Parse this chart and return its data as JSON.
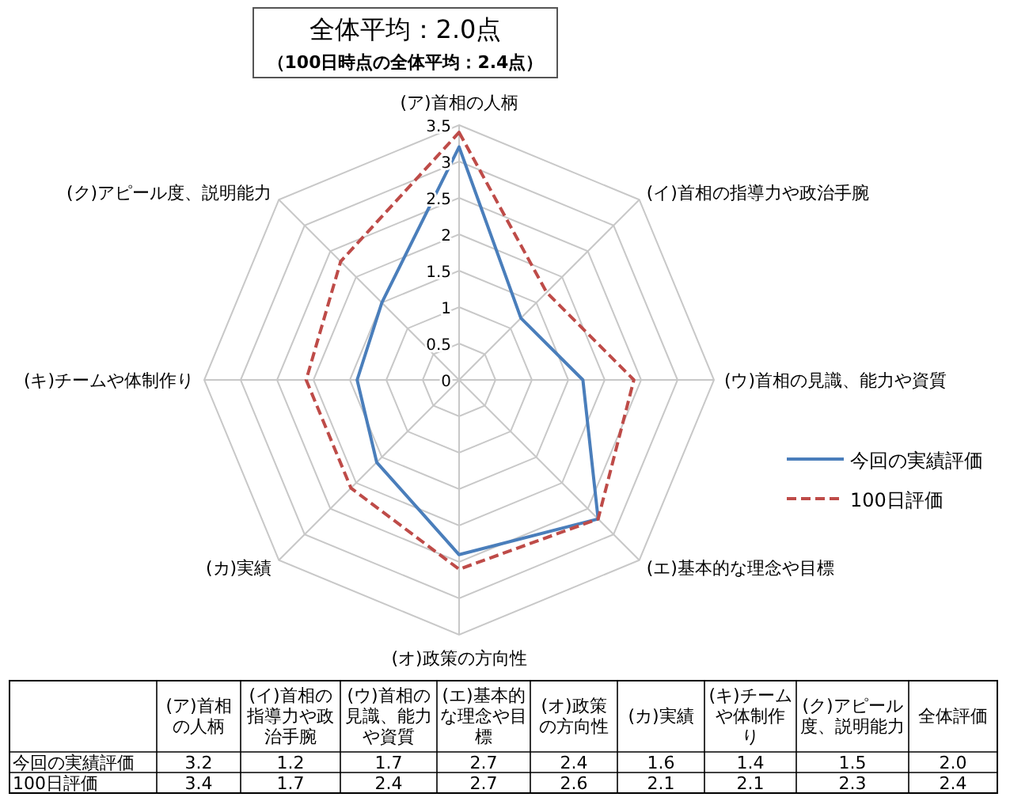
{
  "chart_data": [
    {
      "type": "radar",
      "title": "全体平均：2.0点",
      "subtitle": "（100日時点の全体平均：2.4点）",
      "categories": [
        "(ア)首相の人柄",
        "(イ)首相の指導力や政治手腕",
        "(ウ)首相の見識、能力や資質",
        "(エ)基本的な理念や目標",
        "(オ)政策の方向性",
        "(カ)実績",
        "(キ)チームや体制作り",
        "(ク)アピール度、説明能力"
      ],
      "series": [
        {
          "name": "今回の実績評価",
          "color": "#4a7ebb",
          "line_style": "solid",
          "values": [
            3.2,
            1.2,
            1.7,
            2.7,
            2.4,
            1.6,
            1.4,
            1.5
          ]
        },
        {
          "name": "100日評価",
          "color": "#be4b48",
          "line_style": "dashed",
          "values": [
            3.4,
            1.7,
            2.4,
            2.7,
            2.6,
            2.1,
            2.1,
            2.3
          ]
        }
      ],
      "ylim": [
        0,
        3.5
      ],
      "yticks": [
        0,
        0.5,
        1,
        1.5,
        2,
        2.5,
        3,
        3.5
      ],
      "grid": true,
      "legend": "right",
      "marker": "none"
    },
    {
      "type": "other",
      "categories": [
        "(ア)首相の人柄",
        "(イ)首相の指導力や政治手腕",
        "(ウ)首相の見識、能力や資質",
        "(エ)基本的な理念や目標",
        "(オ)政策の方向性",
        "(カ)実績",
        "(キ)チームや体制作り",
        "(ク)アピール度、説明能力",
        "全体評価"
      ],
      "series": [
        {
          "name": "今回の実績評価",
          "values": [
            3.2,
            1.2,
            1.7,
            2.7,
            2.4,
            1.6,
            1.4,
            1.5,
            2.0
          ],
          "value_labels": [
            "3.2",
            "1.2",
            "1.7",
            "2.7",
            "2.4",
            "1.6",
            "1.4",
            "1.5",
            "2.0"
          ]
        },
        {
          "name": "100日評価",
          "values": [
            3.4,
            1.7,
            2.4,
            2.7,
            2.6,
            2.1,
            2.1,
            2.3,
            2.4
          ],
          "value_labels": [
            "3.4",
            "1.7",
            "2.4",
            "2.7",
            "2.6",
            "2.1",
            "2.1",
            "2.3",
            "2.4"
          ]
        }
      ]
    }
  ]
}
